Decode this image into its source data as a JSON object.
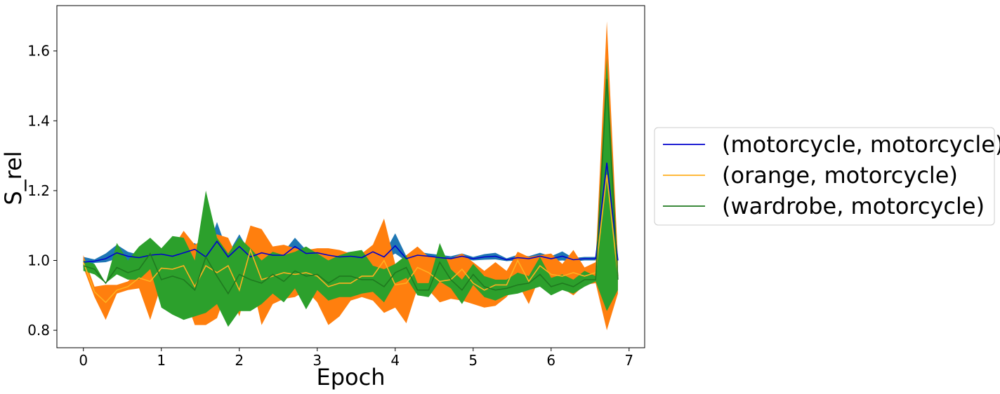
{
  "chart_data": {
    "type": "line",
    "title": "",
    "xlabel": "Epoch",
    "ylabel": "S_rel",
    "xlim": [
      -0.34,
      7.2
    ],
    "ylim": [
      0.75,
      1.73
    ],
    "xticks": [
      0,
      1,
      2,
      3,
      4,
      5,
      6,
      7
    ],
    "yticks": [
      0.8,
      1.0,
      1.2,
      1.4,
      1.6
    ],
    "ytick_labels": [
      "0.8",
      "1.0",
      "1.2",
      "1.4",
      "1.6"
    ],
    "grid": false,
    "legend_position": "center-right-outside",
    "x": [
      0,
      0.143,
      0.286,
      0.429,
      0.571,
      0.714,
      0.857,
      1.0,
      1.143,
      1.286,
      1.429,
      1.571,
      1.714,
      1.857,
      2.0,
      2.143,
      2.286,
      2.429,
      2.571,
      2.714,
      2.857,
      3.0,
      3.143,
      3.286,
      3.429,
      3.571,
      3.714,
      3.857,
      4.0,
      4.143,
      4.286,
      4.429,
      4.571,
      4.714,
      4.857,
      5.0,
      5.143,
      5.286,
      5.429,
      5.571,
      5.714,
      5.857,
      6.0,
      6.143,
      6.286,
      6.429,
      6.571,
      6.714,
      6.857
    ],
    "series": [
      {
        "name": "(motorcycle, motorcycle)",
        "line_color": "#0000cd",
        "band_color": "#1f77b4",
        "mean": [
          0.995,
          0.998,
          1.005,
          1.022,
          1.012,
          1.008,
          1.015,
          1.018,
          1.012,
          1.022,
          1.032,
          1.01,
          1.055,
          1.01,
          1.04,
          1.01,
          1.022,
          1.015,
          1.015,
          1.04,
          1.02,
          1.022,
          1.015,
          1.01,
          1.012,
          1.008,
          1.025,
          1.01,
          1.042,
          1.005,
          1.015,
          1.012,
          1.008,
          1.005,
          1.012,
          1.005,
          1.01,
          1.012,
          1.002,
          1.008,
          1.005,
          1.012,
          1.005,
          1.012,
          1.002,
          1.005,
          1.005,
          1.28,
          1.0
        ],
        "lower": [
          0.98,
          0.993,
          0.995,
          1.005,
          1.0,
          1.0,
          1.008,
          1.01,
          1.005,
          1.01,
          1.015,
          1.0,
          1.025,
          1.0,
          1.02,
          1.0,
          1.01,
          1.005,
          1.005,
          1.02,
          1.01,
          1.01,
          1.005,
          1.0,
          1.0,
          1.0,
          1.01,
          1.0,
          1.02,
          0.998,
          1.005,
          1.003,
          1.0,
          0.998,
          1.005,
          1.0,
          1.002,
          1.003,
          0.998,
          1.0,
          0.998,
          1.002,
          0.998,
          1.0,
          0.997,
          1.0,
          1.0,
          1.22,
          0.99
        ],
        "upper": [
          1.01,
          1.003,
          1.02,
          1.045,
          1.025,
          1.016,
          1.022,
          1.026,
          1.02,
          1.035,
          1.05,
          1.02,
          1.11,
          1.02,
          1.075,
          1.02,
          1.035,
          1.025,
          1.025,
          1.065,
          1.03,
          1.034,
          1.025,
          1.02,
          1.025,
          1.016,
          1.04,
          1.02,
          1.078,
          1.012,
          1.025,
          1.02,
          1.016,
          1.012,
          1.02,
          1.01,
          1.018,
          1.022,
          1.006,
          1.016,
          1.012,
          1.022,
          1.012,
          1.026,
          1.007,
          1.01,
          1.01,
          1.34,
          1.01
        ]
      },
      {
        "name": "(orange, motorcycle)",
        "line_color": "#ffb020",
        "band_color": "#ff7f0e",
        "mean": [
          0.995,
          0.91,
          0.88,
          0.915,
          0.925,
          0.95,
          0.94,
          0.978,
          0.975,
          0.985,
          0.925,
          0.985,
          0.965,
          0.985,
          0.915,
          1.03,
          0.945,
          0.955,
          0.965,
          0.96,
          0.965,
          0.955,
          0.925,
          0.935,
          0.935,
          0.955,
          0.955,
          1.0,
          0.93,
          0.935,
          0.98,
          0.965,
          0.94,
          0.945,
          0.975,
          0.935,
          0.915,
          0.93,
          0.93,
          1.0,
          0.94,
          0.985,
          0.96,
          0.955,
          0.965,
          0.955,
          0.965,
          1.245,
          0.955
        ],
        "lower": [
          0.98,
          0.895,
          0.83,
          0.905,
          0.915,
          0.92,
          0.83,
          0.93,
          0.915,
          0.905,
          0.815,
          0.815,
          0.835,
          0.925,
          0.84,
          0.955,
          0.815,
          0.875,
          0.89,
          0.895,
          0.915,
          0.88,
          0.815,
          0.84,
          0.885,
          0.895,
          0.885,
          0.85,
          0.865,
          0.82,
          0.92,
          0.915,
          0.88,
          0.89,
          0.885,
          0.875,
          0.865,
          0.87,
          0.895,
          0.935,
          0.875,
          0.955,
          0.905,
          0.92,
          0.9,
          0.93,
          0.935,
          0.8,
          0.905
        ],
        "upper": [
          1.015,
          0.925,
          0.93,
          0.93,
          0.94,
          0.97,
          0.995,
          1.025,
          1.035,
          1.085,
          1.045,
          1.065,
          1.075,
          1.065,
          0.995,
          1.1,
          1.09,
          1.04,
          1.045,
          1.035,
          1.03,
          1.035,
          1.035,
          1.03,
          1.02,
          1.02,
          1.045,
          1.12,
          0.99,
          1.015,
          1.04,
          1.01,
          1.01,
          1.005,
          1.02,
          0.995,
          0.97,
          0.995,
          0.97,
          1.025,
          1.01,
          1.015,
          1.02,
          0.99,
          1.03,
          0.98,
          0.995,
          1.685,
          1.005
        ]
      },
      {
        "name": "(wardrobe, motorcycle)",
        "line_color": "#1f7a1f",
        "band_color": "#2ca02c",
        "mean": [
          0.985,
          0.975,
          0.935,
          0.98,
          0.965,
          0.975,
          1.02,
          0.945,
          0.955,
          0.945,
          0.915,
          1.01,
          0.955,
          0.905,
          0.96,
          0.945,
          0.935,
          0.96,
          0.94,
          0.97,
          0.955,
          0.96,
          0.935,
          0.955,
          0.955,
          0.945,
          0.945,
          0.925,
          0.965,
          0.98,
          0.915,
          0.915,
          0.995,
          0.945,
          0.915,
          0.96,
          0.925,
          0.915,
          0.92,
          0.93,
          0.935,
          0.96,
          0.925,
          0.935,
          0.925,
          0.945,
          0.945,
          1.52,
          0.945
        ],
        "lower": [
          0.97,
          0.96,
          0.935,
          0.96,
          0.945,
          0.945,
          0.975,
          0.865,
          0.845,
          0.83,
          0.84,
          0.85,
          0.875,
          0.81,
          0.855,
          0.855,
          0.875,
          0.905,
          0.88,
          0.92,
          0.86,
          0.915,
          0.885,
          0.895,
          0.895,
          0.905,
          0.91,
          0.88,
          0.935,
          0.95,
          0.9,
          0.895,
          0.94,
          0.92,
          0.875,
          0.93,
          0.895,
          0.885,
          0.9,
          0.905,
          0.915,
          0.925,
          0.9,
          0.915,
          0.905,
          0.925,
          0.94,
          0.855,
          0.915
        ],
        "upper": [
          1.0,
          0.99,
          0.935,
          1.05,
          1.0,
          1.04,
          1.065,
          1.035,
          1.07,
          1.065,
          1.0,
          1.2,
          1.065,
          1.02,
          1.065,
          1.035,
          1.0,
          1.025,
          1.015,
          1.025,
          1.04,
          1.02,
          1.0,
          1.015,
          1.025,
          1.03,
          0.985,
          0.975,
          0.99,
          1.015,
          0.935,
          0.935,
          1.05,
          0.975,
          0.945,
          0.99,
          0.955,
          0.945,
          0.945,
          0.965,
          0.955,
          1.01,
          0.95,
          0.96,
          0.945,
          0.97,
          0.955,
          1.58,
          0.975
        ]
      }
    ]
  }
}
